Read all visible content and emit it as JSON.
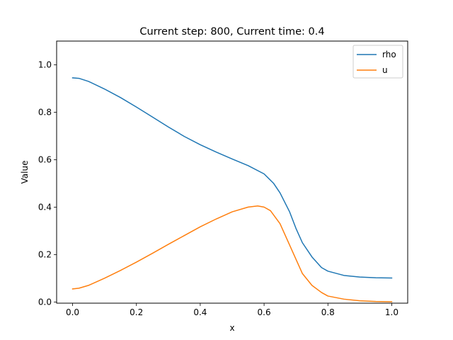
{
  "chart_data": {
    "type": "line",
    "title": "Current step: 800, Current time: 0.4",
    "xlabel": "x",
    "ylabel": "Value",
    "xlim": [
      -0.05,
      1.05
    ],
    "ylim": [
      -0.005,
      1.1
    ],
    "xticks": [
      0.0,
      0.2,
      0.4,
      0.6,
      0.8,
      1.0
    ],
    "xtick_labels": [
      "0.0",
      "0.2",
      "0.4",
      "0.6",
      "0.8",
      "1.0"
    ],
    "yticks": [
      0.0,
      0.2,
      0.4,
      0.6,
      0.8,
      1.0
    ],
    "ytick_labels": [
      "0.0",
      "0.2",
      "0.4",
      "0.6",
      "0.8",
      "1.0"
    ],
    "legend_position": "top-right",
    "grid": false,
    "series": [
      {
        "name": "rho",
        "color": "#1f77b4",
        "x": [
          0.0,
          0.02,
          0.05,
          0.1,
          0.15,
          0.2,
          0.25,
          0.3,
          0.35,
          0.4,
          0.45,
          0.5,
          0.55,
          0.6,
          0.63,
          0.65,
          0.68,
          0.7,
          0.72,
          0.75,
          0.78,
          0.8,
          0.85,
          0.9,
          0.95,
          1.0
        ],
        "y": [
          0.945,
          0.943,
          0.93,
          0.898,
          0.862,
          0.822,
          0.78,
          0.738,
          0.698,
          0.663,
          0.632,
          0.603,
          0.575,
          0.54,
          0.5,
          0.46,
          0.38,
          0.31,
          0.25,
          0.19,
          0.145,
          0.13,
          0.112,
          0.105,
          0.102,
          0.101
        ]
      },
      {
        "name": "u",
        "color": "#ff7f0e",
        "x": [
          0.0,
          0.02,
          0.05,
          0.1,
          0.15,
          0.2,
          0.25,
          0.3,
          0.35,
          0.4,
          0.45,
          0.5,
          0.55,
          0.58,
          0.6,
          0.62,
          0.65,
          0.68,
          0.7,
          0.72,
          0.75,
          0.78,
          0.8,
          0.85,
          0.9,
          0.95,
          1.0
        ],
        "y": [
          0.055,
          0.058,
          0.07,
          0.1,
          0.133,
          0.168,
          0.205,
          0.243,
          0.28,
          0.317,
          0.35,
          0.38,
          0.4,
          0.405,
          0.4,
          0.385,
          0.33,
          0.24,
          0.18,
          0.12,
          0.07,
          0.04,
          0.025,
          0.012,
          0.005,
          0.002,
          0.001
        ]
      }
    ]
  }
}
